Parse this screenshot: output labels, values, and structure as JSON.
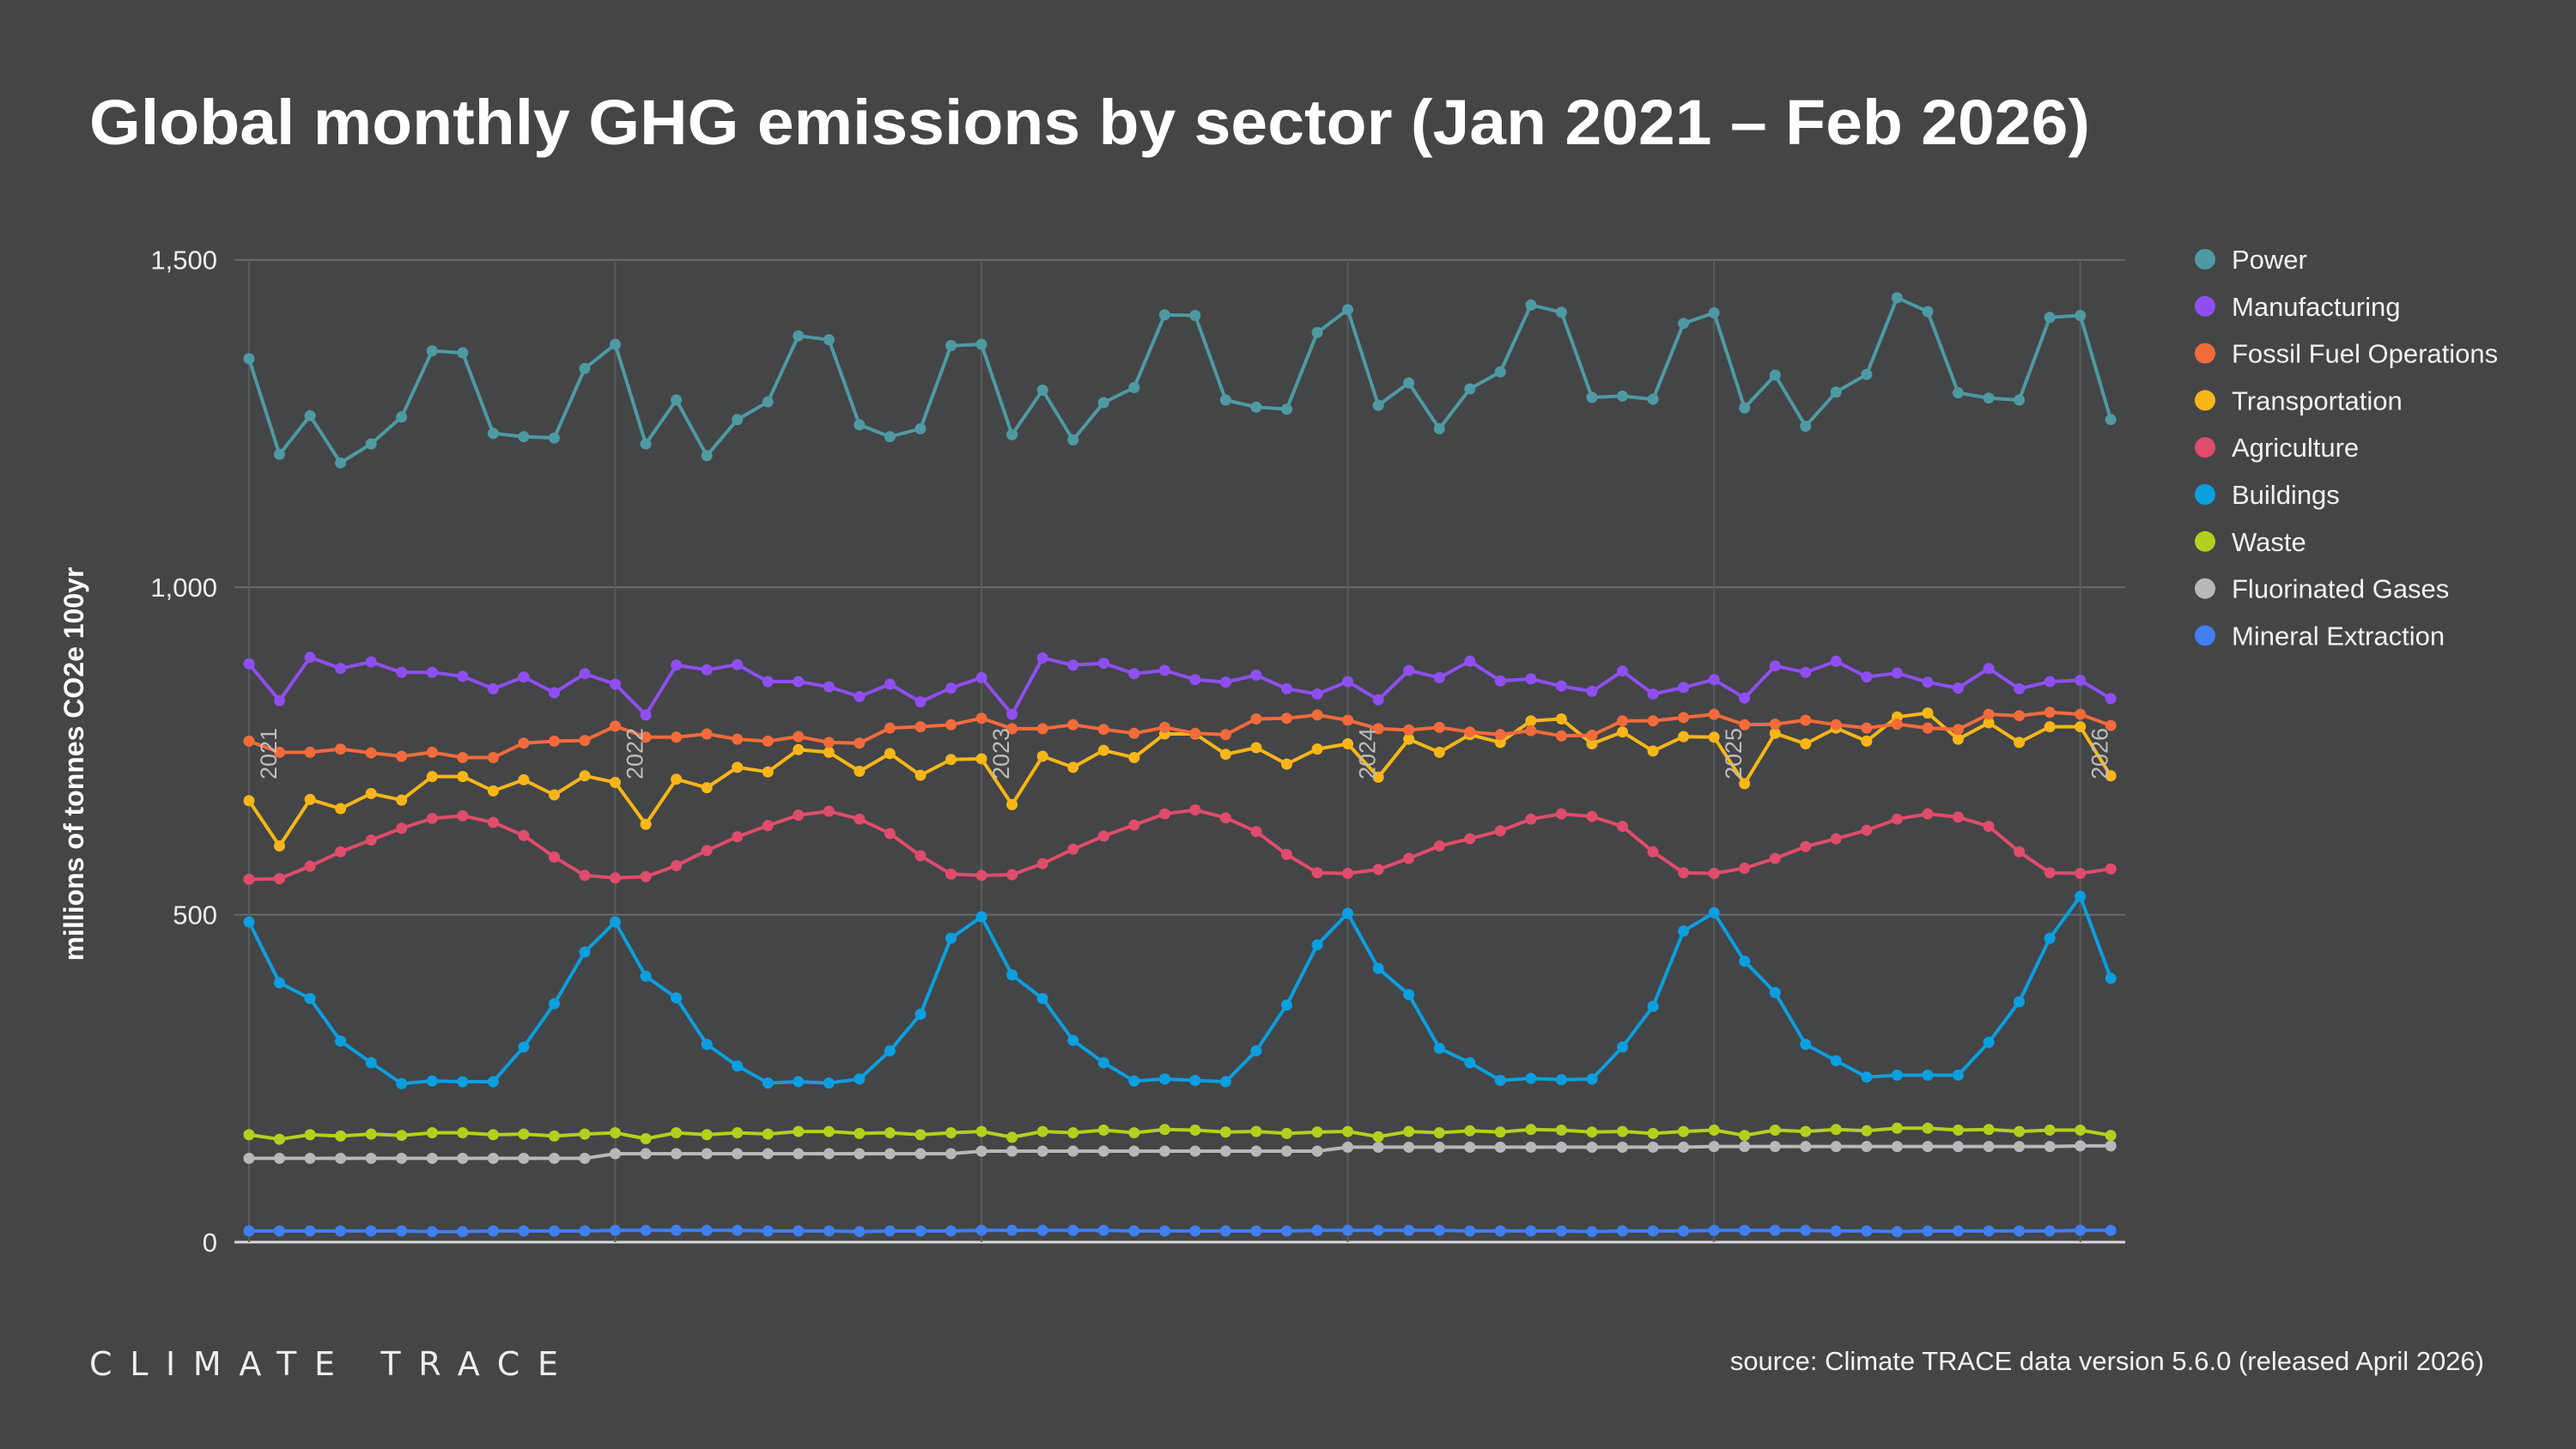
{
  "chart_data": {
    "type": "line",
    "title": "Global monthly GHG emissions by sector (Jan 2021 – Feb 2026)",
    "xlabel": "",
    "ylabel": "millions of tonnes CO2e 100yr",
    "ylim": [
      0,
      1500
    ],
    "yticks": [
      0,
      500,
      1000,
      1500
    ],
    "ytick_labels": [
      "0",
      "500",
      "1,000",
      "1,500"
    ],
    "x_start": "Jan 2021",
    "x_end": "Feb 2026",
    "x_count": 62,
    "year_labels": [
      {
        "label": "2021",
        "index": 0
      },
      {
        "label": "2022",
        "index": 12
      },
      {
        "label": "2023",
        "index": 24
      },
      {
        "label": "2024",
        "index": 36
      },
      {
        "label": "2025",
        "index": 48
      },
      {
        "label": "2026",
        "index": 60
      }
    ],
    "grid": true,
    "legend_position": "right",
    "series": [
      {
        "name": "Power",
        "color": "#4e9aa3",
        "values": [
          1349,
          1203,
          1262,
          1190,
          1219,
          1260,
          1361,
          1358,
          1235,
          1230,
          1228,
          1334,
          1371,
          1219,
          1286,
          1201,
          1256,
          1283,
          1384,
          1378,
          1248,
          1230,
          1242,
          1369,
          1371,
          1233,
          1301,
          1225,
          1282,
          1305,
          1416,
          1415,
          1286,
          1275,
          1272,
          1389,
          1424,
          1278,
          1312,
          1242,
          1303,
          1329,
          1431,
          1420,
          1290,
          1292,
          1287,
          1403,
          1419,
          1274,
          1324,
          1246,
          1298,
          1325,
          1442,
          1421,
          1297,
          1289,
          1286,
          1412,
          1415,
          1256
        ]
      },
      {
        "name": "Manufacturing",
        "color": "#8f4ff0",
        "values": [
          883,
          827,
          893,
          876,
          886,
          870,
          870,
          864,
          845,
          863,
          839,
          868,
          852,
          805,
          881,
          874,
          882,
          856,
          856,
          848,
          833,
          852,
          825,
          846,
          862,
          806,
          892,
          881,
          884,
          868,
          873,
          859,
          855,
          866,
          845,
          837,
          856,
          828,
          873,
          862,
          887,
          857,
          860,
          849,
          841,
          872,
          837,
          847,
          859,
          831,
          880,
          870,
          887,
          863,
          869,
          855,
          846,
          876,
          845,
          856,
          858,
          830
        ]
      },
      {
        "name": "Fossil Fuel Operations",
        "color": "#f26b3a",
        "values": [
          765,
          748,
          748,
          753,
          747,
          742,
          748,
          740,
          740,
          762,
          765,
          766,
          788,
          771,
          771,
          776,
          768,
          765,
          772,
          763,
          762,
          785,
          787,
          790,
          800,
          784,
          784,
          790,
          783,
          777,
          786,
          777,
          775,
          799,
          800,
          805,
          797,
          784,
          782,
          786,
          779,
          775,
          781,
          773,
          774,
          796,
          796,
          801,
          806,
          790,
          791,
          797,
          790,
          785,
          791,
          785,
          783,
          806,
          804,
          809,
          806,
          789
        ]
      },
      {
        "name": "Transportation",
        "color": "#f7b618",
        "values": [
          674,
          605,
          676,
          662,
          685,
          675,
          711,
          711,
          689,
          706,
          683,
          712,
          702,
          638,
          707,
          694,
          725,
          718,
          752,
          748,
          719,
          746,
          713,
          737,
          738,
          668,
          742,
          725,
          751,
          740,
          776,
          776,
          745,
          755,
          730,
          753,
          761,
          710,
          768,
          748,
          775,
          763,
          796,
          799,
          761,
          779,
          750,
          772,
          771,
          700,
          777,
          761,
          785,
          765,
          802,
          808,
          768,
          793,
          763,
          787,
          787,
          712
        ]
      },
      {
        "name": "Agriculture",
        "color": "#e04c6b",
        "values": [
          554,
          555,
          574,
          596,
          614,
          632,
          647,
          651,
          641,
          621,
          588,
          560,
          556,
          558,
          575,
          598,
          619,
          636,
          652,
          658,
          646,
          624,
          590,
          562,
          560,
          561,
          578,
          600,
          620,
          637,
          654,
          660,
          648,
          627,
          592,
          564,
          563,
          569,
          586,
          605,
          616,
          628,
          646,
          654,
          650,
          635,
          596,
          564,
          563,
          571,
          586,
          604,
          616,
          629,
          646,
          654,
          649,
          635,
          596,
          564,
          563,
          570
        ]
      },
      {
        "name": "Buildings",
        "color": "#0b9fe0",
        "values": [
          489,
          396,
          372,
          307,
          274,
          242,
          246,
          245,
          245,
          298,
          364,
          443,
          489,
          406,
          373,
          302,
          269,
          243,
          245,
          243,
          249,
          292,
          348,
          464,
          497,
          408,
          372,
          308,
          274,
          246,
          249,
          247,
          245,
          292,
          362,
          454,
          502,
          418,
          378,
          296,
          274,
          247,
          250,
          248,
          249,
          298,
          360,
          475,
          503,
          429,
          381,
          302,
          277,
          252,
          255,
          255,
          255,
          305,
          367,
          464,
          528,
          403
        ]
      },
      {
        "name": "Waste",
        "color": "#b5cf1e",
        "values": [
          164,
          157,
          164,
          162,
          165,
          163,
          167,
          167,
          164,
          165,
          162,
          165,
          167,
          158,
          167,
          164,
          167,
          165,
          169,
          169,
          166,
          167,
          164,
          167,
          169,
          160,
          169,
          167,
          171,
          167,
          172,
          171,
          168,
          169,
          166,
          168,
          169,
          161,
          169,
          167,
          170,
          168,
          172,
          171,
          168,
          169,
          166,
          169,
          171,
          163,
          171,
          169,
          172,
          170,
          174,
          174,
          171,
          172,
          169,
          171,
          171,
          163
        ]
      },
      {
        "name": "Fluorinated Gases",
        "color": "#b8b8b8",
        "values": [
          128,
          128,
          128,
          128,
          128,
          128,
          128,
          128,
          128,
          128,
          128,
          128,
          135,
          135,
          135,
          135,
          135,
          135,
          135,
          135,
          135,
          135,
          135,
          135,
          139,
          139,
          139,
          139,
          139,
          139,
          139,
          139,
          139,
          139,
          139,
          139,
          145,
          145,
          145,
          145,
          145,
          145,
          145,
          145,
          145,
          145,
          145,
          145,
          146,
          146,
          146,
          146,
          146,
          146,
          146,
          146,
          146,
          146,
          146,
          146,
          147,
          147
        ]
      },
      {
        "name": "Mineral Extraction",
        "color": "#3f7ff0",
        "values": [
          17,
          17,
          17,
          17,
          17,
          17,
          16,
          16,
          17,
          17,
          17,
          17,
          18,
          18,
          18,
          18,
          18,
          17,
          17,
          17,
          16,
          17,
          17,
          17,
          18,
          18,
          18,
          18,
          18,
          17,
          17,
          17,
          17,
          17,
          17,
          18,
          18,
          18,
          18,
          18,
          17,
          17,
          17,
          17,
          16,
          17,
          17,
          17,
          18,
          18,
          18,
          18,
          17,
          17,
          16,
          17,
          17,
          17,
          17,
          17,
          18,
          18
        ]
      }
    ]
  },
  "header": {
    "title": "Global monthly GHG emissions by sector (Jan 2021 – Feb 2026)"
  },
  "footer": {
    "logo": "CLIMATE TRACE",
    "source": "source: Climate TRACE data version 5.6.0 (released April 2026)"
  },
  "colors": {
    "background": "#444547",
    "grid": "#6a6b6d",
    "year_label": "#bdbdbd"
  }
}
